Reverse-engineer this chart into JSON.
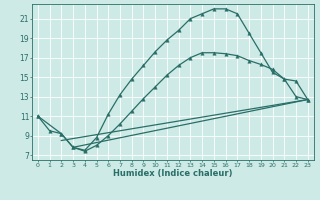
{
  "xlabel": "Humidex (Indice chaleur)",
  "xlim": [
    -0.5,
    23.5
  ],
  "ylim": [
    6.5,
    22.5
  ],
  "xticks": [
    0,
    1,
    2,
    3,
    4,
    5,
    6,
    7,
    8,
    9,
    10,
    11,
    12,
    13,
    14,
    15,
    16,
    17,
    18,
    19,
    20,
    21,
    22,
    23
  ],
  "yticks": [
    7,
    9,
    11,
    13,
    15,
    17,
    19,
    21
  ],
  "bg_color": "#ceeae6",
  "line_color": "#2a6e68",
  "grid_color": "#b0d8d4",
  "curve1_x": [
    0,
    1,
    2,
    3,
    4,
    5,
    6,
    7,
    8,
    9,
    10,
    11,
    12,
    13,
    14,
    15,
    16,
    17,
    18,
    19,
    20,
    21,
    22,
    23
  ],
  "curve1_y": [
    11.0,
    9.5,
    9.2,
    7.8,
    7.5,
    8.8,
    11.2,
    13.2,
    14.8,
    16.2,
    17.6,
    18.8,
    19.8,
    21.0,
    21.5,
    22.0,
    22.0,
    21.5,
    19.5,
    17.5,
    15.5,
    14.8,
    14.6,
    12.7
  ],
  "curve2_x": [
    0,
    2,
    3,
    4,
    5,
    6,
    7,
    8,
    9,
    10,
    11,
    12,
    13,
    14,
    15,
    16,
    17,
    18,
    19,
    20,
    21,
    22,
    23
  ],
  "curve2_y": [
    11.0,
    9.2,
    7.8,
    7.4,
    8.0,
    9.0,
    10.2,
    11.5,
    12.8,
    14.0,
    15.2,
    16.2,
    17.0,
    17.5,
    17.5,
    17.4,
    17.2,
    16.7,
    16.3,
    15.8,
    14.8,
    13.0,
    12.7
  ],
  "curve3_x": [
    2,
    23
  ],
  "curve3_y": [
    8.5,
    12.7
  ],
  "curve4_x": [
    3,
    23
  ],
  "curve4_y": [
    7.8,
    12.7
  ],
  "marker": "^",
  "markersize": 2.5,
  "linewidth": 0.9
}
